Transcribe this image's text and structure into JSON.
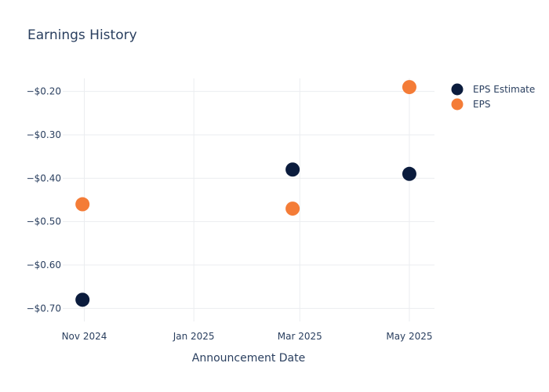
{
  "chart_data": {
    "type": "scatter",
    "title": "Earnings History",
    "xlabel": "Announcement Date",
    "ylabel": "",
    "x_ticks": [
      "Nov 2024",
      "Jan 2025",
      "Mar 2025",
      "May 2025"
    ],
    "y_ticks": [
      "−$0.20",
      "−$0.30",
      "−$0.40",
      "−$0.50",
      "−$0.60",
      "−$0.70"
    ],
    "y_tick_values": [
      -0.2,
      -0.3,
      -0.4,
      -0.5,
      -0.6,
      -0.7
    ],
    "x_tick_dates": [
      "2024-11-01",
      "2025-01-01",
      "2025-03-01",
      "2025-05-01"
    ],
    "xlim": [
      "2024-10-20",
      "2025-05-15"
    ],
    "ylim": [
      -0.73,
      -0.17
    ],
    "grid": true,
    "legend_position": "top-right",
    "series": [
      {
        "name": "EPS Estimate",
        "color": "#0b1c3d",
        "points": [
          {
            "x": "2024-10-31",
            "y": -0.68
          },
          {
            "x": "2025-02-25",
            "y": -0.38
          },
          {
            "x": "2025-05-01",
            "y": -0.39
          }
        ]
      },
      {
        "name": "EPS",
        "color": "#f47c37",
        "points": [
          {
            "x": "2024-10-31",
            "y": -0.46
          },
          {
            "x": "2025-02-25",
            "y": -0.47
          },
          {
            "x": "2025-05-01",
            "y": -0.19
          }
        ]
      }
    ]
  }
}
